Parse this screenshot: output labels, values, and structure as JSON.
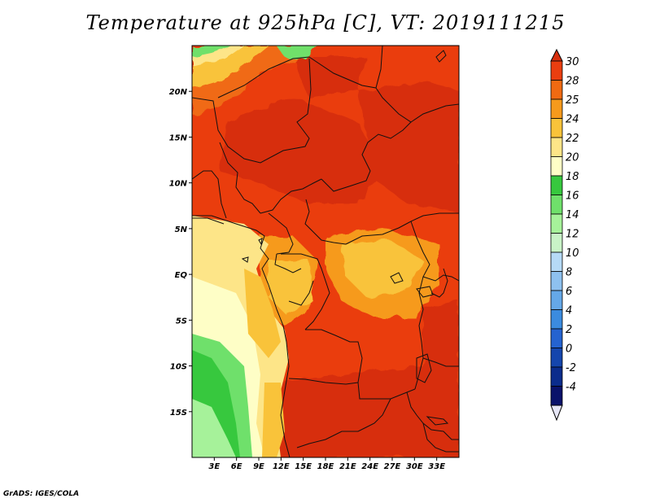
{
  "title": "Temperature at 925hPa [C], VT: 2019111215",
  "credit": "GrADS: IGES/COLA",
  "map": {
    "lon_range": [
      0,
      36
    ],
    "lat_range": [
      -20,
      25
    ],
    "lon_ticks": [
      "3E",
      "6E",
      "9E",
      "12E",
      "15E",
      "18E",
      "21E",
      "24E",
      "27E",
      "30E",
      "33E"
    ],
    "lat_ticks": [
      "20N",
      "15N",
      "10N",
      "5N",
      "EQ",
      "5S",
      "10S",
      "15S"
    ],
    "variable": "Temperature at 925hPa",
    "units": "C"
  },
  "colorbar": {
    "levels": [
      "30",
      "28",
      "25",
      "24",
      "22",
      "20",
      "18",
      "16",
      "14",
      "12",
      "10",
      "8",
      "6",
      "4",
      "2",
      "0",
      "-2",
      "-4"
    ],
    "colors": [
      "#d72f0e",
      "#ea3e10",
      "#f06a12",
      "#f69a1c",
      "#f9c33a",
      "#fde588",
      "#fefec6",
      "#37c83e",
      "#6fe06b",
      "#a6f29a",
      "#c9f3c7",
      "#b6daf6",
      "#8ec1ef",
      "#65a8e8",
      "#3b8bdf",
      "#2563d0",
      "#1546ad",
      "#0b2c8c",
      "#0a126a"
    ]
  }
}
